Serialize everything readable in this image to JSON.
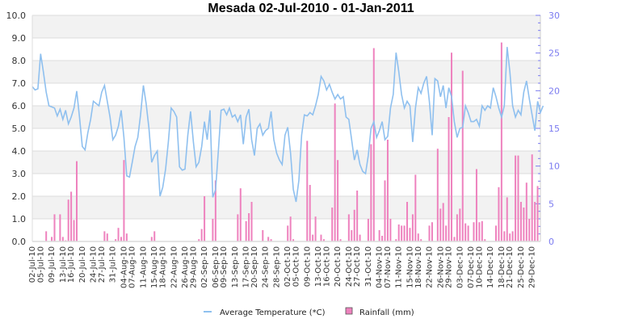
{
  "chart_data": {
    "type": "bar+line",
    "title": "Mesada  02-Jul-2010 - 01-Jan-2011",
    "xlabel": "",
    "ylabel_left": "",
    "ylabel_right": "",
    "y_left_lim": [
      0,
      10
    ],
    "y_left_ticks": [
      "0.0",
      "1.0",
      "2.0",
      "3.0",
      "4.0",
      "5.0",
      "6.0",
      "7.0",
      "8.0",
      "9.0",
      "10.0"
    ],
    "y_right_lim": [
      0,
      30
    ],
    "y_right_ticks": [
      "0",
      "5",
      "10",
      "15",
      "20",
      "25",
      "30"
    ],
    "grid": true,
    "legend_position": "bottom",
    "x_tick_labels": [
      "02-Jul-10",
      "05-Jul-10",
      "09-Jul-10",
      "13-Jul-10",
      "16-Jul-10",
      "20-Jul-10",
      "24-Jul-10",
      "27-Jul-10",
      "31-Jul-10",
      "04-Aug-10",
      "07-Aug-10",
      "11-Aug-10",
      "15-Aug-10",
      "18-Aug-10",
      "22-Aug-10",
      "26-Aug-10",
      "29-Aug-10",
      "02-Sep-10",
      "06-Sep-10",
      "09-Sep-10",
      "13-Sep-10",
      "17-Sep-10",
      "20-Sep-10",
      "24-Sep-10",
      "28-Sep-10",
      "02-Oct-10",
      "05-Oct-10",
      "09-Oct-10",
      "13-Oct-10",
      "16-Oct-10",
      "20-Oct-10",
      "24-Oct-10",
      "27-Oct-10",
      "31-Oct-10",
      "04-Nov-10",
      "07-Nov-10",
      "11-Nov-10",
      "15-Nov-10",
      "18-Nov-10",
      "22-Nov-10",
      "26-Nov-10",
      "29-Nov-10",
      "03-Dec-10",
      "07-Dec-10",
      "10-Dec-10",
      "14-Dec-10",
      "18-Dec-10",
      "21-Dec-10",
      "25-Dec-10",
      "29-Dec-10"
    ],
    "x_tick_day_index": [
      0,
      3,
      7,
      11,
      14,
      18,
      22,
      25,
      29,
      33,
      36,
      40,
      44,
      47,
      51,
      55,
      58,
      62,
      66,
      69,
      73,
      77,
      80,
      84,
      88,
      92,
      95,
      99,
      103,
      106,
      110,
      114,
      117,
      121,
      125,
      128,
      132,
      136,
      139,
      143,
      147,
      150,
      154,
      158,
      161,
      165,
      169,
      172,
      176,
      180
    ],
    "num_days": 184,
    "series": [
      {
        "name": "Average Temperature (*C)",
        "type": "line",
        "axis": "left",
        "color": "#8fc0ef",
        "values": [
          6.85,
          6.7,
          6.75,
          8.3,
          7.5,
          6.6,
          6.0,
          5.95,
          5.9,
          5.55,
          5.85,
          5.4,
          5.8,
          5.2,
          5.5,
          5.9,
          6.65,
          5.5,
          4.2,
          4.05,
          4.8,
          5.4,
          6.2,
          6.1,
          6.0,
          6.6,
          6.9,
          6.2,
          5.5,
          4.5,
          4.7,
          5.1,
          5.8,
          4.6,
          2.9,
          2.85,
          3.5,
          4.2,
          4.6,
          5.6,
          6.9,
          6.1,
          5.0,
          3.5,
          3.8,
          4.0,
          2.0,
          2.4,
          3.2,
          4.4,
          5.9,
          5.75,
          5.5,
          3.3,
          3.15,
          3.2,
          4.7,
          5.75,
          4.4,
          3.3,
          3.5,
          4.2,
          5.3,
          4.5,
          5.8,
          1.95,
          2.3,
          4.0,
          5.8,
          5.85,
          5.6,
          5.9,
          5.5,
          5.6,
          5.3,
          5.6,
          4.3,
          5.5,
          5.85,
          4.5,
          3.8,
          5.0,
          5.2,
          4.7,
          4.9,
          5.0,
          5.75,
          4.5,
          3.9,
          3.6,
          3.4,
          4.7,
          5.05,
          3.9,
          2.3,
          1.75,
          2.7,
          4.7,
          5.6,
          5.55,
          5.7,
          5.6,
          6.0,
          6.5,
          7.3,
          7.1,
          6.7,
          6.95,
          6.6,
          6.3,
          6.5,
          6.3,
          6.4,
          5.5,
          5.4,
          4.5,
          3.6,
          4.05,
          3.4,
          3.1,
          3.0,
          3.8,
          5.0,
          5.3,
          4.6,
          4.9,
          5.3,
          4.5,
          4.65,
          5.9,
          6.5,
          8.35,
          7.5,
          6.5,
          5.9,
          6.2,
          6.0,
          4.4,
          5.9,
          6.8,
          6.55,
          7.0,
          7.3,
          6.2,
          4.7,
          7.2,
          7.1,
          6.4,
          6.9,
          5.9,
          6.8,
          6.4,
          5.3,
          4.6,
          5.0,
          5.05,
          6.0,
          5.7,
          5.3,
          5.3,
          5.4,
          5.1,
          6.0,
          5.8,
          6.0,
          5.9,
          6.8,
          6.4,
          5.9,
          5.5,
          6.0,
          8.6,
          7.5,
          6.0,
          5.5,
          5.8,
          5.6,
          6.6,
          7.1,
          6.3,
          5.6,
          4.9,
          6.2,
          5.7,
          6.0
        ]
      },
      {
        "name": "Rainfall (mm)",
        "type": "bar",
        "axis": "right",
        "color": "#ee82be",
        "values": [
          0,
          0,
          0,
          0,
          0,
          1.35,
          0,
          0.6,
          3.6,
          0,
          3.6,
          0.6,
          0.15,
          5.55,
          6.6,
          2.85,
          10.65,
          0,
          0,
          0,
          0,
          0,
          0,
          0,
          0,
          0,
          1.35,
          1.05,
          0,
          0,
          0.3,
          1.8,
          0.6,
          10.8,
          1.05,
          0,
          0,
          0,
          0,
          0,
          0,
          0,
          0,
          0.6,
          1.35,
          0,
          0,
          0,
          0,
          0,
          0,
          0,
          0,
          0,
          0,
          0,
          0,
          0,
          0,
          0,
          0.3,
          1.65,
          6.0,
          0,
          0,
          3.0,
          8.1,
          0,
          0,
          0,
          0,
          0,
          0,
          0,
          3.6,
          7.05,
          0,
          2.7,
          3.75,
          5.25,
          0,
          0,
          0,
          1.5,
          0,
          0.6,
          0.3,
          0,
          0,
          0,
          0,
          0,
          2.1,
          3.3,
          0.3,
          0,
          0,
          0,
          0,
          13.35,
          7.5,
          0.9,
          3.3,
          0,
          0.9,
          0.3,
          0,
          0,
          4.5,
          18.3,
          10.8,
          0.3,
          0,
          0,
          3.6,
          1.5,
          4.2,
          6.75,
          0.9,
          0,
          0,
          3.0,
          12.9,
          25.65,
          0,
          1.5,
          0.75,
          8.1,
          13.5,
          3.0,
          0,
          0.3,
          2.25,
          2.1,
          2.1,
          5.25,
          1.8,
          3.6,
          8.85,
          1.05,
          0.3,
          0,
          0,
          2.1,
          2.55,
          0,
          12.3,
          4.35,
          5.1,
          2.1,
          16.5,
          25.05,
          0.6,
          3.6,
          4.35,
          22.65,
          2.4,
          2.1,
          0,
          2.55,
          9.6,
          2.55,
          2.7,
          0.3,
          0,
          0,
          0,
          2.1,
          7.2,
          26.4,
          1.35,
          5.85,
          1.05,
          1.35,
          11.4,
          11.4,
          5.25,
          4.5,
          7.8,
          3.0,
          11.55,
          5.25,
          7.35,
          0
        ]
      }
    ]
  },
  "legend": {
    "items": [
      {
        "label": "Average Temperature (*C)",
        "color": "#8fc0ef",
        "marker": "line"
      },
      {
        "label": "Rainfall (mm)",
        "color": "#ee82be",
        "marker": "square"
      }
    ]
  }
}
